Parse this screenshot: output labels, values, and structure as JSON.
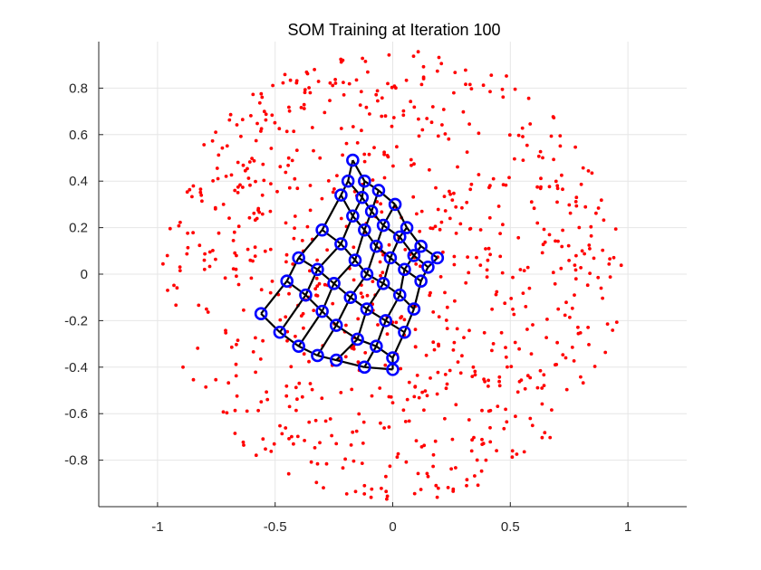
{
  "chart_data": {
    "type": "scatter",
    "title": "SOM Training at Iteration 100",
    "xlabel": "",
    "ylabel": "",
    "xlim": [
      -1.25,
      1.25
    ],
    "ylim": [
      -1,
      1
    ],
    "xticks": [
      -1,
      -0.5,
      0,
      0.5,
      1
    ],
    "xtick_labels": [
      "-1",
      "-0.5",
      "0",
      "0.5",
      "1"
    ],
    "yticks": [
      -0.8,
      -0.6,
      -0.4,
      -0.2,
      0,
      0.2,
      0.4,
      0.6,
      0.8
    ],
    "ytick_labels": [
      "-0.8",
      "-0.6",
      "-0.4",
      "-0.2",
      "0",
      "0.2",
      "0.4",
      "0.6",
      "0.8"
    ],
    "grid": true,
    "colors": {
      "data_points": "#ff0000",
      "neurons": "#0000ff",
      "grid_lines": "#000000"
    },
    "data_points": {
      "description_count": 800,
      "distribution": "uniform disk",
      "radius": 0.98,
      "center": [
        0,
        0
      ]
    },
    "som": {
      "grid_size": [
        7,
        7
      ],
      "corners": {
        "top": [
          -0.17,
          0.49
        ],
        "right": [
          0.19,
          0.07
        ],
        "bottom": [
          0.0,
          -0.41
        ],
        "left": [
          -0.56,
          -0.17
        ]
      },
      "neurons": [
        [
          [
            -0.17,
            0.49
          ],
          [
            -0.12,
            0.4
          ],
          [
            -0.06,
            0.36
          ],
          [
            0.01,
            0.3
          ],
          [
            0.06,
            0.2
          ],
          [
            0.12,
            0.12
          ],
          [
            0.19,
            0.07
          ]
        ],
        [
          [
            -0.19,
            0.4
          ],
          [
            -0.13,
            0.33
          ],
          [
            -0.09,
            0.27
          ],
          [
            -0.04,
            0.21
          ],
          [
            0.03,
            0.16
          ],
          [
            0.09,
            0.08
          ],
          [
            0.15,
            0.03
          ]
        ],
        [
          [
            -0.22,
            0.34
          ],
          [
            -0.17,
            0.25
          ],
          [
            -0.12,
            0.19
          ],
          [
            -0.07,
            0.12
          ],
          [
            -0.01,
            0.07
          ],
          [
            0.05,
            0.02
          ],
          [
            0.12,
            -0.03
          ]
        ],
        [
          [
            -0.3,
            0.19
          ],
          [
            -0.22,
            0.13
          ],
          [
            -0.16,
            0.06
          ],
          [
            -0.11,
            0.0
          ],
          [
            -0.04,
            -0.04
          ],
          [
            0.03,
            -0.09
          ],
          [
            0.09,
            -0.15
          ]
        ],
        [
          [
            -0.4,
            0.07
          ],
          [
            -0.32,
            0.02
          ],
          [
            -0.25,
            -0.04
          ],
          [
            -0.18,
            -0.1
          ],
          [
            -0.11,
            -0.15
          ],
          [
            -0.03,
            -0.2
          ],
          [
            0.05,
            -0.25
          ]
        ],
        [
          [
            -0.45,
            -0.03
          ],
          [
            -0.37,
            -0.09
          ],
          [
            -0.3,
            -0.16
          ],
          [
            -0.24,
            -0.22
          ],
          [
            -0.15,
            -0.28
          ],
          [
            -0.07,
            -0.31
          ],
          [
            0.0,
            -0.36
          ]
        ],
        [
          [
            -0.56,
            -0.17
          ],
          [
            -0.48,
            -0.25
          ],
          [
            -0.4,
            -0.31
          ],
          [
            -0.32,
            -0.35
          ],
          [
            -0.24,
            -0.37
          ],
          [
            -0.12,
            -0.4
          ],
          [
            0.0,
            -0.41
          ]
        ]
      ]
    }
  }
}
